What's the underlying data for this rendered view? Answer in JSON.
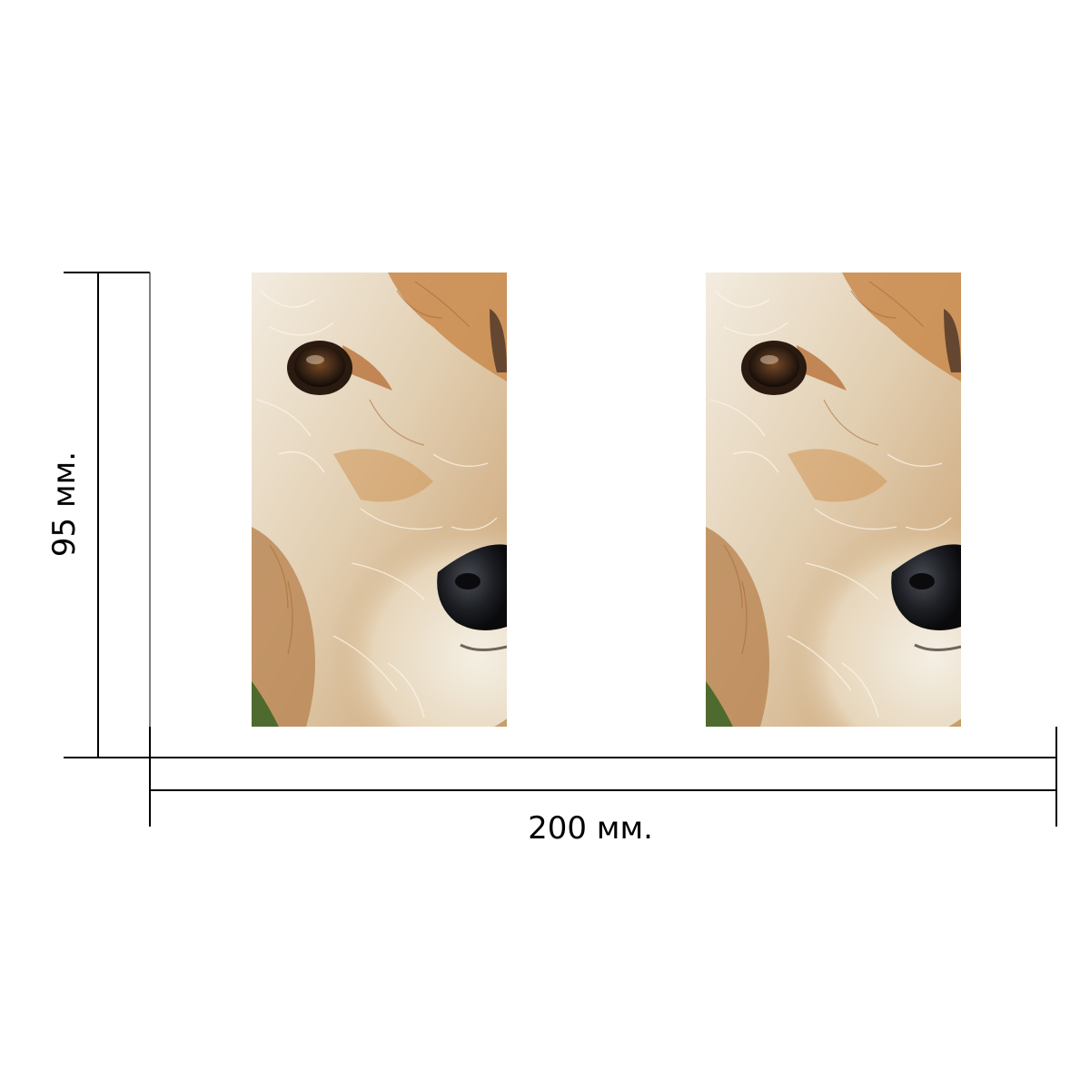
{
  "dimensions": {
    "height_label": "95 мм.",
    "width_label": "200 мм."
  },
  "panels": [
    {
      "subject": "dog-face-closeup"
    },
    {
      "subject": "dog-face-closeup"
    }
  ],
  "colors": {
    "line": "#000000",
    "fur_light": "#efe6d6",
    "fur_ginger": "#c98a4c",
    "eye": "#3a2516",
    "nose": "#1d1f24",
    "grass": "#4f6a2e"
  }
}
